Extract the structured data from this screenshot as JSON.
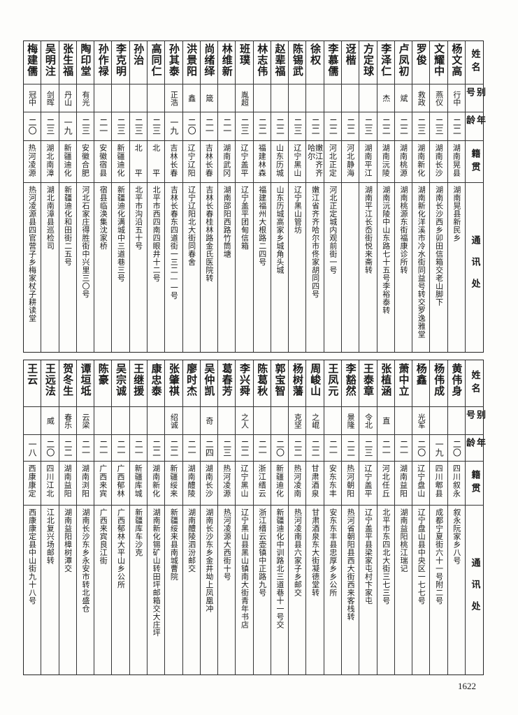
{
  "header": {
    "name": "姓名",
    "alias": "别号",
    "age": "年龄",
    "native": "籍贯",
    "address": "通讯处"
  },
  "tables": [
    {
      "rows": [
        {
          "name": "杨文高",
          "alias": "行中",
          "age": "二二",
          "native": "湖南晃县",
          "address": "湖南晃县新民乡"
        },
        {
          "name": "文耀中",
          "alias": "燕仪",
          "age": "二三",
          "native": "湖南长沙",
          "address": "湖南长沙西乡卯田信箱交老山脚下"
        },
        {
          "name": "罗俊",
          "alias": "救政",
          "age": "二三",
          "native": "湖南新化",
          "address": "湖南新化洋溪市冷水街同益号转交罗逸雅堂"
        },
        {
          "name": "卢凤初",
          "alias": "斌",
          "age": "二二",
          "native": "湖南桃源",
          "address": "湖南桃源东街福康诊所转"
        },
        {
          "name": "李泽仁",
          "alias": "杰",
          "age": "二二",
          "native": "湖南沅陵",
          "address": "湖南沅陵中山东路七十五号李裕泰转"
        },
        {
          "name": "方定球",
          "alias": "",
          "age": "二三",
          "native": "湖南平江",
          "address": "湖南平江长岙街悦来斋转"
        },
        {
          "name": "迓楷",
          "alias": "",
          "age": "二二",
          "native": "河北静海",
          "address": ""
        },
        {
          "name": "李慕儒",
          "alias": "",
          "age": "二二",
          "native": "河北正定",
          "address": "河北正定城内观前街一号"
        },
        {
          "name": "徐权",
          "alias": "",
          "age": "二二",
          "native": "嫩江齐齐哈尔",
          "address": "嫩江省齐齐哈尔市佟家胡同四号"
        },
        {
          "name": "陈锡武",
          "alias": "",
          "age": "二三",
          "native": "辽宁黑山",
          "address": "辽宁黑山管坊"
        },
        {
          "name": "赵辈福",
          "alias": "",
          "age": "二二",
          "native": "山东历城",
          "address": "山东历城高家乡城角头城"
        },
        {
          "name": "林志伟",
          "alias": "",
          "age": "二二",
          "native": "福建林森",
          "address": "福建福州大根路二四号"
        },
        {
          "name": "班璞",
          "alias": "胤超",
          "age": "二三",
          "native": "辽宁盖平",
          "address": "辽宁盖平团甸信箱"
        },
        {
          "name": "林维新",
          "alias": "",
          "age": "二一",
          "native": "湖南武冈",
          "address": "湖南邵阳西路竹筒塘"
        },
        {
          "name": "尚绪绎",
          "alias": "箴",
          "age": "二一",
          "native": "吉林长春",
          "address": "吉林长春桂林路金氏医院转"
        },
        {
          "name": "洪景阳",
          "alias": "鑫",
          "age": "二〇",
          "native": "辽宁辽阳",
          "address": "辽宁辽阳北大街同春舍"
        },
        {
          "name": "孙其泰",
          "alias": "正浩",
          "age": "一九",
          "native": "吉林长春",
          "address": "吉林长春东四道街一三二—一号"
        },
        {
          "name": "高同仁",
          "alias": "",
          "age": "二三",
          "native": "北　　平",
          "address": "北平市西四南四眼井十二号"
        },
        {
          "name": "孙治",
          "alias": "",
          "age": "二三",
          "native": "北　　平",
          "address": "北平市沟沿五十号"
        },
        {
          "name": "李克明",
          "alias": "",
          "age": "二三",
          "native": "新疆迪化",
          "address": "新疆迪化满城中三道巷三号"
        },
        {
          "name": "孙作禄",
          "alias": "",
          "age": "二一",
          "native": "安徽宿县",
          "address": "宿县临涣集沈家桥"
        },
        {
          "name": "陶印堂",
          "alias": "有光",
          "age": "二三",
          "native": "安徽合肥",
          "address": "河北石家庄得胜街中兴里三〇号"
        },
        {
          "name": "张生福",
          "alias": "丹山",
          "age": "一九",
          "native": "新疆迪化",
          "address": "新疆迪化和田街二五号"
        },
        {
          "name": "吴明注",
          "alias": "剑晖",
          "age": "二三",
          "native": "湖北南漳",
          "address": "湖北南漳县巡检司"
        },
        {
          "name": "梅建儒",
          "alias": "冠中",
          "age": "二〇",
          "native": "热河凌源",
          "address": "热河凌源县四官营子乡梅家杖子耕读堂"
        }
      ]
    },
    {
      "rows": [
        {
          "name": "黄伟身",
          "alias": "",
          "age": "二〇",
          "native": "四川叙永",
          "address": "叙永阮家乡八号"
        },
        {
          "name": "杨伟成",
          "alias": "",
          "age": "一九",
          "native": "四川郫县",
          "address": "成都宁夏街六十一号附二号"
        },
        {
          "name": "杨鑫",
          "alias": "光军",
          "age": "二〇",
          "native": "辽宁盘山",
          "address": "辽宁盘山县中央区一七七号"
        },
        {
          "name": "萧中立",
          "alias": "",
          "age": "二一",
          "native": "湖南益阳",
          "address": "湖南益阳桃江瑞记"
        },
        {
          "name": "张植涵",
          "alias": "直",
          "age": "二一",
          "native": "河北任丘",
          "address": "北平市东四北大街三七三号"
        },
        {
          "name": "王泰章",
          "alias": "令北",
          "age": "二三",
          "native": "辽宁盖平",
          "address": "辽宁盖平县梁家屯村卞家屯"
        },
        {
          "name": "李豁然",
          "alias": "景隆",
          "age": "二二",
          "native": "热河朝阳",
          "address": "热河省朝阳县西大街西来客栈转"
        },
        {
          "name": "王凤元",
          "alias": "",
          "age": "二一",
          "native": "安东东丰",
          "address": "安东东丰县忠厚乡乡公所"
        },
        {
          "name": "周峻山",
          "alias": "之崐",
          "age": "二二",
          "native": "甘肃酒泉",
          "address": "甘肃酒泉东大街凝德堂转"
        },
        {
          "name": "杨树藩",
          "alias": "克坚",
          "age": "二二",
          "native": "热河凌南",
          "address": "热河凌南县六家子乡邮交"
        },
        {
          "name": "郭宝智",
          "alias": "",
          "age": "二〇",
          "native": "新疆迪化",
          "address": "新疆迪化中训路北三道巷十一号交"
        },
        {
          "name": "陈葛秋",
          "alias": "",
          "age": "二一",
          "native": "浙江缙云",
          "address": "浙江缙云壶镇中正路九号"
        },
        {
          "name": "李兴舜",
          "alias": "之人",
          "age": "二二",
          "native": "辽宁黑山",
          "address": "辽宁黑山县黑山镇南大街青年书店"
        },
        {
          "name": "葛春芳",
          "alias": "",
          "age": "二三",
          "native": "热河凌源",
          "address": "热河凌源大西街十号"
        },
        {
          "name": "吴仲凯",
          "alias": "奇",
          "age": "二四",
          "native": "湖南长沙",
          "address": "湖南长沙东乡金井坳上凤凰冲"
        },
        {
          "name": "廖时杰",
          "alias": "",
          "age": "二一",
          "native": "湖南醴陵",
          "address": "湖南醴陵泗汾邮交"
        },
        {
          "name": "张肇祺",
          "alias": "绍诚",
          "age": "二二",
          "native": "新疆绥来",
          "address": "新疆绥来县南城曹院"
        },
        {
          "name": "康忠泰",
          "alias": "",
          "age": "二二",
          "native": "湖南新化",
          "address": "湖南新化锡矿山转田坪邮箱交大庄坪"
        },
        {
          "name": "王继援",
          "alias": "",
          "age": "二一",
          "native": "新疆库城",
          "address": "新疆库车沙克"
        },
        {
          "name": "吴宗诚",
          "alias": "",
          "age": "二一",
          "native": "广西郁林",
          "address": "广西郁林大平山乡公所"
        },
        {
          "name": "陈豪",
          "alias": "",
          "age": "二一",
          "native": "广西来宾",
          "address": "广西来宾良江街"
        },
        {
          "name": "谭垣坻",
          "alias": "云梁",
          "age": "二一",
          "native": "湖南浏阳",
          "address": "湖南长沙东乡永安市转北盛仓"
        },
        {
          "name": "贺冬生",
          "alias": "春乐",
          "age": "二二",
          "native": "湖南益阳",
          "address": "湖南益阳樟树潭交"
        },
        {
          "name": "王远法",
          "alias": "威",
          "age": "二〇",
          "native": "四川江北",
          "address": "江北复兴场邮转"
        },
        {
          "name": "王云",
          "alias": "",
          "age": "一八",
          "native": "西康康定",
          "address": "西康康定县中山街九十八号"
        }
      ]
    }
  ],
  "page_number": "1622"
}
